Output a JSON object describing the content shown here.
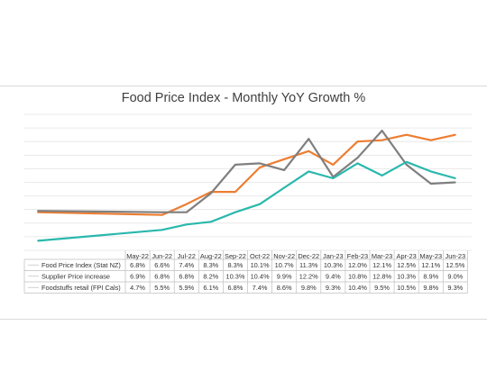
{
  "chart_data": {
    "type": "line",
    "title": "Food Price Index - Monthly YoY Growth %",
    "categories": [
      "May-22",
      "Jun-22",
      "Jul-22",
      "Aug-22",
      "Sep-22",
      "Oct-22",
      "Nov-22",
      "Dec-22",
      "Jan-23",
      "Feb-23",
      "Mar-23",
      "Apr-23",
      "May-23",
      "Jun-23"
    ],
    "series": [
      {
        "name": "Food Price Index (Stat NZ)",
        "color": "#ed7d31",
        "values": [
          6.8,
          6.6,
          7.4,
          8.3,
          8.3,
          10.1,
          10.7,
          11.3,
          10.3,
          12.0,
          12.1,
          12.5,
          12.1,
          12.5
        ],
        "labels": [
          "6.8%",
          "6.6%",
          "7.4%",
          "8.3%",
          "8.3%",
          "10.1%",
          "10.7%",
          "11.3%",
          "10.3%",
          "12.0%",
          "12.1%",
          "12.5%",
          "12.1%",
          "12.5%"
        ]
      },
      {
        "name": "Supplier Price increase",
        "color": "#7f7f7f",
        "values": [
          6.9,
          6.8,
          6.8,
          8.2,
          10.3,
          10.4,
          9.9,
          12.2,
          9.4,
          10.8,
          12.8,
          10.3,
          8.9,
          9.0
        ],
        "labels": [
          "6.9%",
          "6.8%",
          "6.8%",
          "8.2%",
          "10.3%",
          "10.4%",
          "9.9%",
          "12.2%",
          "9.4%",
          "10.8%",
          "12.8%",
          "10.3%",
          "8.9%",
          "9.0%"
        ]
      },
      {
        "name": "Foodstuffs retail (FPI Cals)",
        "color": "#2ab8ad",
        "values": [
          4.7,
          5.5,
          5.9,
          6.1,
          6.8,
          7.4,
          8.6,
          9.8,
          9.3,
          10.4,
          9.5,
          10.5,
          9.8,
          9.3
        ],
        "labels": [
          "4.7%",
          "5.5%",
          "5.9%",
          "6.1%",
          "6.8%",
          "7.4%",
          "8.6%",
          "9.8%",
          "9.3%",
          "10.4%",
          "9.5%",
          "10.5%",
          "9.8%",
          "9.3%"
        ]
      }
    ],
    "ylim": [
      4,
      14
    ],
    "grid": true,
    "legend": "data-table"
  }
}
